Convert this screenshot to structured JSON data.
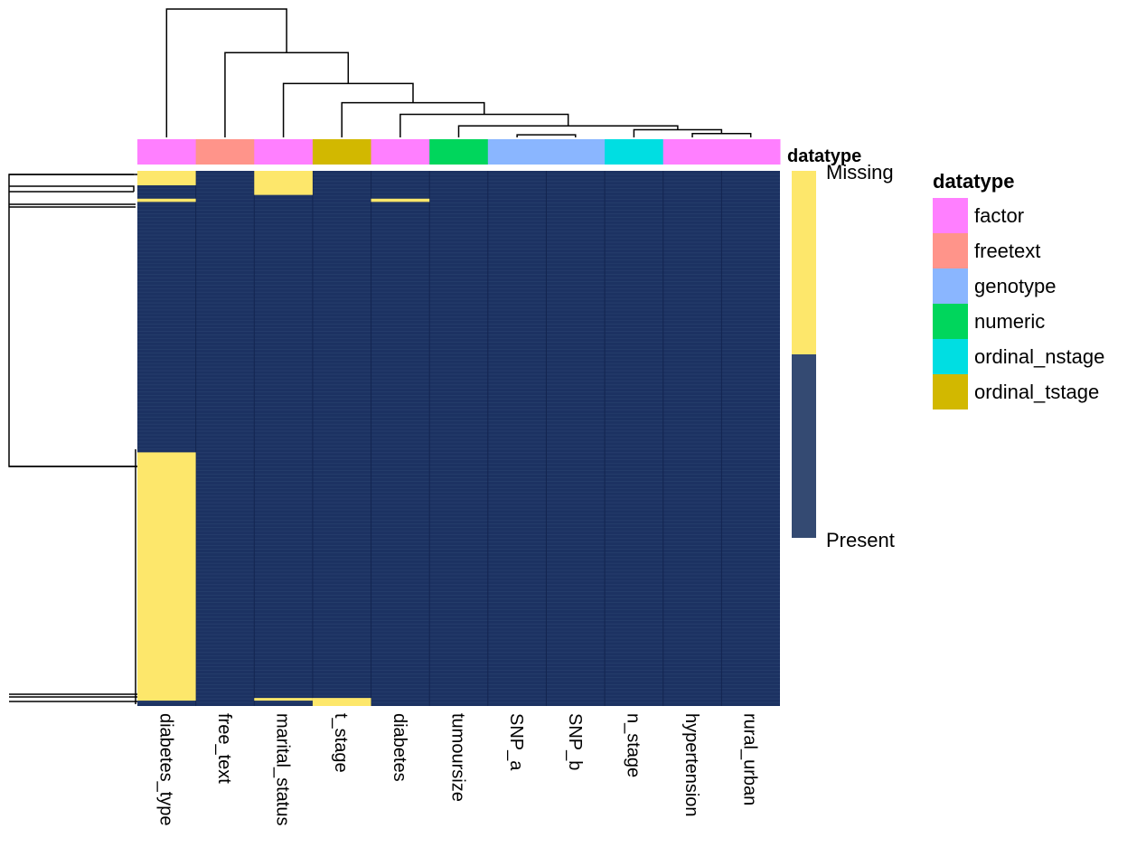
{
  "chart_data": {
    "type": "heatmap",
    "title": "",
    "columns": [
      "diabetes_type",
      "free_text",
      "marital_status",
      "t_stage",
      "diabetes",
      "tumoursize",
      "SNP_a",
      "SNP_b",
      "n_stage",
      "hypertension",
      "rural_urban"
    ],
    "column_datatypes": [
      "factor",
      "freetext",
      "factor",
      "ordinal_tstage",
      "factor",
      "numeric",
      "genotype",
      "genotype",
      "ordinal_nstage",
      "factor",
      "factor"
    ],
    "annotation_label": "datatype",
    "value_levels": [
      "Missing",
      "Present"
    ],
    "value_colors": {
      "Missing": "#FDE76B",
      "Present": "#1C3262"
    },
    "legend_bar_colors": {
      "Missing": "#FDE76B",
      "Present": "#344A72"
    },
    "row_count_approx": 150,
    "missing_blocks": [
      {
        "column": "diabetes_type",
        "row_start": 0,
        "row_end": 0.027
      },
      {
        "column": "diabetes_type",
        "row_start": 0.052,
        "row_end": 0.058
      },
      {
        "column": "diabetes_type",
        "row_start": 0.526,
        "row_end": 0.99
      },
      {
        "column": "marital_status",
        "row_start": 0,
        "row_end": 0.045
      },
      {
        "column": "marital_status",
        "row_start": 0.985,
        "row_end": 0.99
      },
      {
        "column": "diabetes",
        "row_start": 0.052,
        "row_end": 0.058
      },
      {
        "column": "t_stage",
        "row_start": 0.985,
        "row_end": 1.0
      }
    ],
    "column_dendrogram_merges": [
      [
        9,
        10,
        0.03
      ],
      [
        8,
        11,
        0.06
      ],
      [
        6,
        7,
        0.02
      ],
      [
        5,
        12,
        0.09
      ],
      [
        4,
        14,
        0.18
      ],
      [
        3,
        15,
        0.27
      ],
      [
        2,
        16,
        0.42
      ],
      [
        1,
        17,
        0.66
      ],
      [
        0,
        18,
        1.0
      ]
    ],
    "legend": {
      "title": "datatype",
      "placement": "right",
      "items": [
        {
          "label": "factor",
          "color": "#FF7FFF"
        },
        {
          "label": "freetext",
          "color": "#FF948A"
        },
        {
          "label": "genotype",
          "color": "#8AB6FF"
        },
        {
          "label": "numeric",
          "color": "#00D65C"
        },
        {
          "label": "ordinal_nstage",
          "color": "#00DEE2"
        },
        {
          "label": "ordinal_tstage",
          "color": "#D2B800"
        }
      ]
    }
  }
}
